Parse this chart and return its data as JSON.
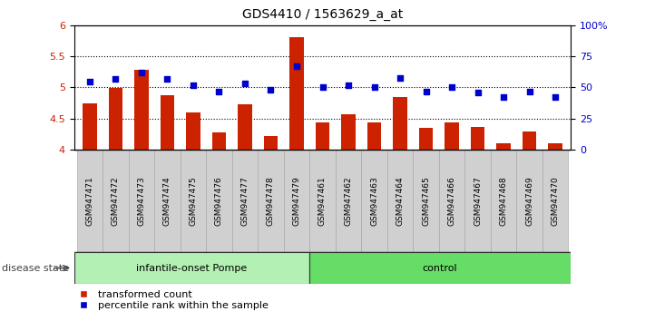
{
  "title": "GDS4410 / 1563629_a_at",
  "samples": [
    "GSM947471",
    "GSM947472",
    "GSM947473",
    "GSM947474",
    "GSM947475",
    "GSM947476",
    "GSM947477",
    "GSM947478",
    "GSM947479",
    "GSM947461",
    "GSM947462",
    "GSM947463",
    "GSM947464",
    "GSM947465",
    "GSM947466",
    "GSM947467",
    "GSM947468",
    "GSM947469",
    "GSM947470"
  ],
  "bar_values": [
    4.75,
    4.99,
    5.28,
    4.88,
    4.6,
    4.28,
    4.73,
    4.21,
    5.82,
    4.44,
    4.56,
    4.44,
    4.85,
    4.35,
    4.43,
    4.36,
    4.09,
    4.29,
    4.1
  ],
  "pct_values": [
    55,
    57,
    62,
    57,
    52,
    47,
    53,
    48,
    67,
    50,
    52,
    50,
    58,
    47,
    50,
    46,
    42,
    47,
    42
  ],
  "bar_color": "#cc2200",
  "pct_color": "#0000cc",
  "ylim_left": [
    4.0,
    6.0
  ],
  "ylim_right": [
    0,
    100
  ],
  "yticks_left": [
    4.0,
    4.5,
    5.0,
    5.5,
    6.0
  ],
  "yticks_right": [
    0,
    25,
    50,
    75,
    100
  ],
  "ytick_labels_right": [
    "0",
    "25",
    "50",
    "75",
    "100%"
  ],
  "hlines": [
    4.5,
    5.0,
    5.5
  ],
  "group1_label": "infantile-onset Pompe",
  "group2_label": "control",
  "group1_count": 9,
  "group2_count": 10,
  "disease_state_label": "disease state",
  "legend_bar": "transformed count",
  "legend_pct": "percentile rank within the sample",
  "group1_color": "#b3f0b3",
  "group2_color": "#66dd66",
  "bar_width": 0.55,
  "baseline": 4.0,
  "fig_width": 7.11,
  "fig_height": 3.54,
  "dpi": 100
}
